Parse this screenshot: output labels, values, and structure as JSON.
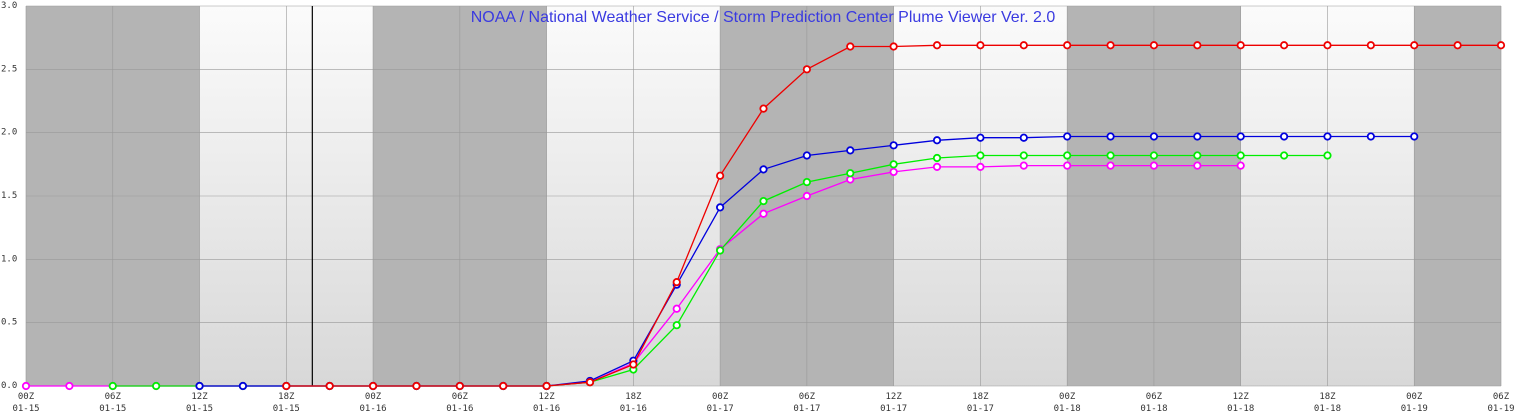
{
  "chart_data": {
    "type": "line",
    "title": "NOAA / National Weather Service / Storm Prediction Center Plume Viewer Ver. 2.0",
    "xlabel": "",
    "ylabel": "",
    "ylim": [
      0,
      3.0
    ],
    "yticks": [
      "0.0",
      "0.5",
      "1.0",
      "1.5",
      "2.0",
      "2.5",
      "3.0"
    ],
    "xlim_hours": [
      0,
      102
    ],
    "xticks": [
      {
        "time": "00Z",
        "date": "01-15"
      },
      {
        "time": "06Z",
        "date": "01-15"
      },
      {
        "time": "12Z",
        "date": "01-15"
      },
      {
        "time": "18Z",
        "date": "01-15"
      },
      {
        "time": "00Z",
        "date": "01-16"
      },
      {
        "time": "06Z",
        "date": "01-16"
      },
      {
        "time": "12Z",
        "date": "01-16"
      },
      {
        "time": "18Z",
        "date": "01-16"
      },
      {
        "time": "00Z",
        "date": "01-17"
      },
      {
        "time": "06Z",
        "date": "01-17"
      },
      {
        "time": "12Z",
        "date": "01-17"
      },
      {
        "time": "18Z",
        "date": "01-17"
      },
      {
        "time": "00Z",
        "date": "01-18"
      },
      {
        "time": "06Z",
        "date": "01-18"
      },
      {
        "time": "12Z",
        "date": "01-18"
      },
      {
        "time": "18Z",
        "date": "01-18"
      },
      {
        "time": "00Z",
        "date": "01-19"
      },
      {
        "time": "06Z",
        "date": "01-19"
      }
    ],
    "current_time_hour": 19.8,
    "night_bands_hours": [
      [
        0,
        12
      ],
      [
        24,
        36
      ],
      [
        48,
        60
      ],
      [
        72,
        84
      ],
      [
        96,
        102
      ]
    ],
    "grid": true,
    "series": [
      {
        "color": "#ff00ff",
        "x_hours": [
          0,
          3,
          6,
          9,
          12,
          15,
          18,
          21,
          24,
          27,
          30,
          33,
          36,
          39,
          42,
          45,
          48,
          51,
          54,
          57,
          60,
          63,
          66,
          69,
          72,
          75,
          78,
          81,
          84
        ],
        "values": [
          0,
          0,
          0,
          0,
          0,
          0,
          0,
          0,
          0,
          0,
          0,
          0,
          0,
          0.03,
          0.18,
          0.61,
          1.08,
          1.36,
          1.5,
          1.63,
          1.69,
          1.73,
          1.73,
          1.74,
          1.74,
          1.74,
          1.74,
          1.74,
          1.74
        ]
      },
      {
        "color": "#00ee00",
        "x_hours": [
          6,
          9,
          12,
          15,
          18,
          21,
          24,
          27,
          30,
          33,
          36,
          39,
          42,
          45,
          48,
          51,
          54,
          57,
          60,
          63,
          66,
          69,
          72,
          75,
          78,
          81,
          84,
          87,
          90
        ],
        "values": [
          0,
          0,
          0,
          0,
          0,
          0,
          0,
          0,
          0,
          0,
          0,
          0.03,
          0.13,
          0.48,
          1.07,
          1.46,
          1.61,
          1.68,
          1.75,
          1.8,
          1.82,
          1.82,
          1.82,
          1.82,
          1.82,
          1.82,
          1.82,
          1.82,
          1.82
        ]
      },
      {
        "color": "#0000dd",
        "x_hours": [
          12,
          15,
          18,
          21,
          24,
          27,
          30,
          33,
          36,
          39,
          42,
          45,
          48,
          51,
          54,
          57,
          60,
          63,
          66,
          69,
          72,
          75,
          78,
          81,
          84,
          87,
          90,
          93,
          96
        ],
        "values": [
          0,
          0,
          0,
          0,
          0,
          0,
          0,
          0,
          0,
          0.04,
          0.2,
          0.8,
          1.41,
          1.71,
          1.82,
          1.86,
          1.9,
          1.94,
          1.96,
          1.96,
          1.97,
          1.97,
          1.97,
          1.97,
          1.97,
          1.97,
          1.97,
          1.97,
          1.97
        ]
      },
      {
        "color": "#ee0000",
        "x_hours": [
          18,
          21,
          24,
          27,
          30,
          33,
          36,
          39,
          42,
          45,
          48,
          51,
          54,
          57,
          60,
          63,
          66,
          69,
          72,
          75,
          78,
          81,
          84,
          87,
          90,
          93,
          96,
          99,
          102
        ],
        "values": [
          0,
          0,
          0,
          0,
          0,
          0,
          0,
          0.03,
          0.17,
          0.82,
          1.66,
          2.19,
          2.5,
          2.68,
          2.68,
          2.69,
          2.69,
          2.69,
          2.69,
          2.69,
          2.69,
          2.69,
          2.69,
          2.69,
          2.69,
          2.69,
          2.69,
          2.69,
          2.69
        ]
      }
    ]
  }
}
